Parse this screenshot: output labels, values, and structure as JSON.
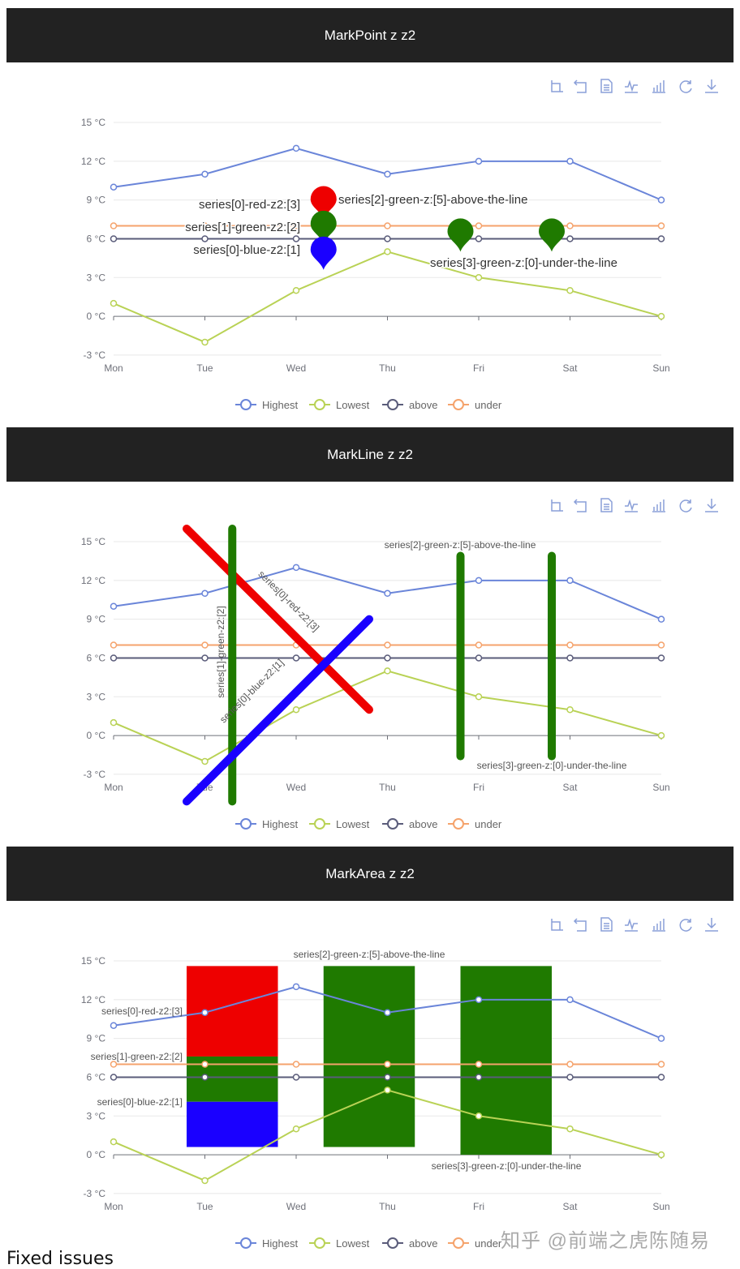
{
  "chart_data": [
    {
      "type": "line",
      "title": "MarkPoint z z2",
      "kind": "markPoint",
      "categories": [
        "Mon",
        "Tue",
        "Wed",
        "Thu",
        "Fri",
        "Sat",
        "Sun"
      ],
      "yticks": [
        "15 °C",
        "12 °C",
        "9 °C",
        "6 °C",
        "3 °C",
        "0 °C",
        "-3 °C"
      ],
      "ylim": [
        -3,
        15
      ],
      "grid": true,
      "legend_position": "bottom",
      "series": [
        {
          "name": "Highest",
          "color": "#6a85d9",
          "values": [
            10,
            11,
            13,
            11,
            12,
            12,
            9
          ]
        },
        {
          "name": "Lowest",
          "color": "#b9d255",
          "values": [
            1,
            -2,
            2,
            5,
            3,
            2,
            0
          ]
        },
        {
          "name": "above",
          "color": "#5a5c7a",
          "values": [
            6,
            6,
            6,
            6,
            6,
            6,
            6
          ]
        },
        {
          "name": "under",
          "color": "#f5a36c",
          "values": [
            7,
            7,
            7,
            7,
            7,
            7,
            7
          ]
        }
      ],
      "marks": [
        {
          "label": "series[0]-red-z2:[3]",
          "color": "#ee0000",
          "x": 2.3,
          "y": 7.5
        },
        {
          "label": "series[1]-green-z2:[2]",
          "color": "#1f7a00",
          "x": 2.3,
          "y": 5.6
        },
        {
          "label": "series[0]-blue-z2:[1]",
          "color": "#1a00ff",
          "x": 2.3,
          "y": 3.6
        },
        {
          "label": "series[2]-green-z:[5]-above-the-line",
          "color": "#1f7a00",
          "x": 3.8,
          "y": 5.0
        },
        {
          "label": "series[3]-green-z:[0]-under-the-line",
          "color": "#1f7a00",
          "x": 4.8,
          "y": 5.0
        }
      ]
    },
    {
      "type": "line",
      "title": "MarkLine z z2",
      "kind": "markLine",
      "categories": [
        "Mon",
        "Tue",
        "Wed",
        "Thu",
        "Fri",
        "Sat",
        "Sun"
      ],
      "yticks": [
        "15 °C",
        "12 °C",
        "9 °C",
        "6 °C",
        "3 °C",
        "0 °C",
        "-3 °C"
      ],
      "ylim": [
        -3,
        15
      ],
      "grid": true,
      "legend_position": "bottom",
      "series": [
        {
          "name": "Highest",
          "color": "#6a85d9",
          "values": [
            10,
            11,
            13,
            11,
            12,
            12,
            9
          ]
        },
        {
          "name": "Lowest",
          "color": "#b9d255",
          "values": [
            1,
            -2,
            2,
            5,
            3,
            2,
            0
          ]
        },
        {
          "name": "above",
          "color": "#5a5c7a",
          "values": [
            6,
            6,
            6,
            6,
            6,
            6,
            6
          ]
        },
        {
          "name": "under",
          "color": "#f5a36c",
          "values": [
            7,
            7,
            7,
            7,
            7,
            7,
            7
          ]
        }
      ],
      "marks": [
        {
          "label": "series[0]-red-z2:[3]",
          "color": "#ee0000",
          "from": [
            0.8,
            16
          ],
          "to": [
            2.8,
            2
          ]
        },
        {
          "label": "series[1]-green-z2:[2]",
          "color": "#1f7a00",
          "from": [
            1.3,
            16
          ],
          "to": [
            1.3,
            -5.1
          ]
        },
        {
          "label": "series[0]-blue-z2:[1]",
          "color": "#1a00ff",
          "from": [
            0.8,
            -5.1
          ],
          "to": [
            2.8,
            9
          ]
        },
        {
          "label": "series[2]-green-z:[5]-above-the-line",
          "color": "#1f7a00",
          "from": [
            3.8,
            13.9
          ],
          "to": [
            3.8,
            -1.6
          ]
        },
        {
          "label": "series[3]-green-z:[0]-under-the-line",
          "color": "#1f7a00",
          "from": [
            4.8,
            13.9
          ],
          "to": [
            4.8,
            -1.6
          ]
        }
      ]
    },
    {
      "type": "line",
      "title": "MarkArea z z2",
      "kind": "markArea",
      "categories": [
        "Mon",
        "Tue",
        "Wed",
        "Thu",
        "Fri",
        "Sat",
        "Sun"
      ],
      "yticks": [
        "15 °C",
        "12 °C",
        "9 °C",
        "6 °C",
        "3 °C",
        "0 °C",
        "-3 °C"
      ],
      "ylim": [
        -3,
        15
      ],
      "grid": true,
      "legend_position": "bottom",
      "series": [
        {
          "name": "Highest",
          "color": "#6a85d9",
          "values": [
            10,
            11,
            13,
            11,
            12,
            12,
            9
          ]
        },
        {
          "name": "Lowest",
          "color": "#b9d255",
          "values": [
            1,
            -2,
            2,
            5,
            3,
            2,
            0
          ]
        },
        {
          "name": "above",
          "color": "#5a5c7a",
          "values": [
            6,
            6,
            6,
            6,
            6,
            6,
            6
          ]
        },
        {
          "name": "under",
          "color": "#f5a36c",
          "values": [
            7,
            7,
            7,
            7,
            7,
            7,
            7
          ]
        }
      ],
      "marks": [
        {
          "label": "series[0]-red-z2:[3]",
          "color": "#ee0000",
          "x": [
            0.8,
            1.8
          ],
          "y": [
            7.6,
            14.6
          ]
        },
        {
          "label": "series[1]-green-z2:[2]",
          "color": "#1f7a00",
          "x": [
            0.8,
            1.8
          ],
          "y": [
            4.1,
            7.6
          ]
        },
        {
          "label": "series[0]-blue-z2:[1]",
          "color": "#1a00ff",
          "x": [
            0.8,
            1.8
          ],
          "y": [
            0.6,
            4.1
          ]
        },
        {
          "label": "series[2]-green-z:[5]-above-the-line",
          "color": "#1f7a00",
          "x": [
            2.3,
            3.3
          ],
          "y": [
            0.6,
            14.6
          ]
        },
        {
          "label": "series[3]-green-z:[0]-under-the-line",
          "color": "#1f7a00",
          "x": [
            3.8,
            4.8
          ],
          "y": [
            0,
            14.6
          ]
        }
      ]
    }
  ],
  "toolbar": {
    "icons": [
      "zoom-icon",
      "zoom-reset-icon",
      "data-view-icon",
      "line-chart-icon",
      "bar-chart-icon",
      "restore-icon",
      "download-icon"
    ],
    "color": "#8a9fd8"
  },
  "footer": {
    "heading": "Fixed issues"
  },
  "watermark": "知乎 @前端之虎陈随易"
}
